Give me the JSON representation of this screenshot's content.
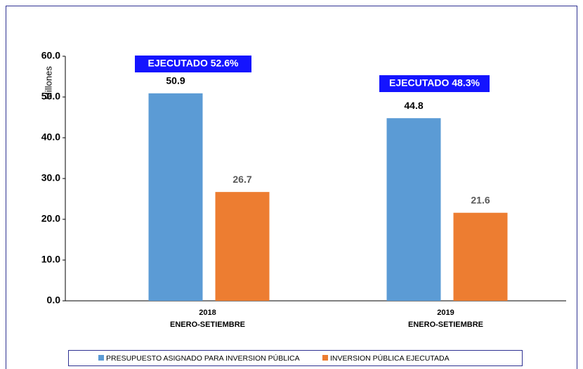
{
  "chart_data": {
    "type": "bar",
    "y_label": "Millones",
    "categories": [
      [
        "2018",
        "ENERO-SETIEMBRE"
      ],
      [
        "2019",
        "ENERO-SETIEMBRE"
      ]
    ],
    "series": [
      {
        "name": "PRESUPUESTO ASIGNADO PARA INVERSION PÚBLICA",
        "color": "#5b9bd5",
        "values": [
          50.9,
          44.8
        ]
      },
      {
        "name": "INVERSION PÚBLICA EJECUTADA",
        "color": "#ed7d31",
        "values": [
          26.7,
          21.6
        ]
      }
    ],
    "annotations": [
      "EJECUTADO 52.6%",
      "EJECUTADO 48.3%"
    ],
    "ylim": [
      0,
      60
    ],
    "yticks": [
      {
        "value": 0,
        "label": "0.0"
      },
      {
        "value": 10,
        "label": "10.0"
      },
      {
        "value": 20,
        "label": "20.0"
      },
      {
        "value": 30,
        "label": "30.0"
      },
      {
        "value": 40,
        "label": "40.0"
      },
      {
        "value": 50,
        "label": "50.0"
      },
      {
        "value": 60,
        "label": "60.0"
      }
    ],
    "legend": "bottom"
  }
}
